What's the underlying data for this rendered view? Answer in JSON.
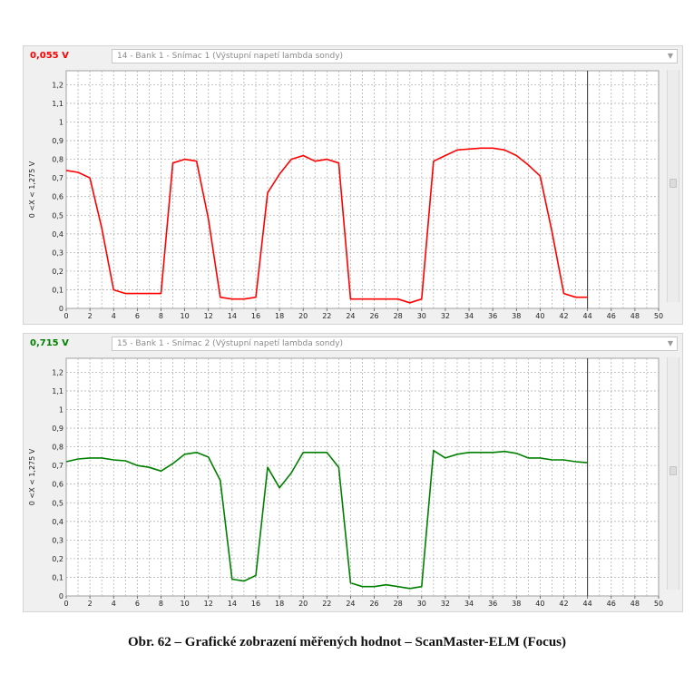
{
  "panels": [
    {
      "value_label": "0,055 V",
      "value_color": "#ff0000",
      "selector": "14 - Bank 1 - Snímac 1 (Výstupní napetí lambda sondy)",
      "ylabel": "0  <X <  1,275 V"
    },
    {
      "value_label": "0,715 V",
      "value_color": "#008000",
      "selector": "15 - Bank 1 - Snímac 2 (Výstupní napetí lambda sondy)",
      "ylabel": "0  <X <  1,275 V"
    }
  ],
  "caption": "Obr. 62 – Grafické zobrazení měřených hodnot – ScanMaster-ELM (Focus)",
  "chart_data": [
    {
      "type": "line",
      "title": "",
      "xlabel": "",
      "ylabel": "0  <X <  1,275 V",
      "xlim": [
        0,
        50
      ],
      "ylim": [
        0,
        1.275
      ],
      "grid": true,
      "cursor_x": 44,
      "x_ticks": [
        "0",
        "2",
        "4",
        "6",
        "8",
        "10",
        "12",
        "14",
        "16",
        "18",
        "20",
        "22",
        "24",
        "26",
        "28",
        "30",
        "32",
        "34",
        "36",
        "38",
        "40",
        "42",
        "44",
        "46",
        "48",
        "50"
      ],
      "y_ticks": [
        "0",
        "0,1",
        "0,2",
        "0,3",
        "0,4",
        "0,5",
        "0,6",
        "0,7",
        "0,8",
        "0,9",
        "1",
        "1,1",
        "1,2"
      ],
      "color": "#ff0000",
      "x": [
        0,
        1,
        2,
        3,
        4,
        5,
        6,
        7,
        8,
        9,
        10,
        11,
        12,
        13,
        14,
        15,
        16,
        17,
        18,
        19,
        20,
        21,
        22,
        23,
        24,
        25,
        26,
        27,
        28,
        29,
        30,
        31,
        32,
        33,
        34,
        35,
        36,
        37,
        38,
        39,
        40,
        41,
        42,
        43,
        44
      ],
      "values": [
        0.74,
        0.73,
        0.7,
        0.43,
        0.1,
        0.08,
        0.08,
        0.08,
        0.08,
        0.78,
        0.8,
        0.79,
        0.48,
        0.06,
        0.05,
        0.05,
        0.06,
        0.62,
        0.72,
        0.8,
        0.82,
        0.79,
        0.8,
        0.78,
        0.05,
        0.05,
        0.05,
        0.05,
        0.05,
        0.03,
        0.05,
        0.79,
        0.82,
        0.85,
        0.855,
        0.86,
        0.86,
        0.85,
        0.82,
        0.77,
        0.71,
        0.41,
        0.08,
        0.06,
        0.06
      ]
    },
    {
      "type": "line",
      "title": "",
      "xlabel": "",
      "ylabel": "0  <X <  1,275 V",
      "xlim": [
        0,
        50
      ],
      "ylim": [
        0,
        1.275
      ],
      "grid": true,
      "cursor_x": 44,
      "x_ticks": [
        "0",
        "2",
        "4",
        "6",
        "8",
        "10",
        "12",
        "14",
        "16",
        "18",
        "20",
        "22",
        "24",
        "26",
        "28",
        "30",
        "32",
        "34",
        "36",
        "38",
        "40",
        "42",
        "44",
        "46",
        "48",
        "50"
      ],
      "y_ticks": [
        "0",
        "0,1",
        "0,2",
        "0,3",
        "0,4",
        "0,5",
        "0,6",
        "0,7",
        "0,8",
        "0,9",
        "1",
        "1,1",
        "1,2"
      ],
      "color": "#008000",
      "x": [
        0,
        1,
        2,
        3,
        4,
        5,
        6,
        7,
        8,
        9,
        10,
        11,
        12,
        13,
        14,
        15,
        16,
        17,
        18,
        19,
        20,
        21,
        22,
        23,
        24,
        25,
        26,
        27,
        28,
        29,
        30,
        31,
        32,
        33,
        34,
        35,
        36,
        37,
        38,
        39,
        40,
        41,
        42,
        43,
        44
      ],
      "values": [
        0.72,
        0.735,
        0.74,
        0.74,
        0.73,
        0.725,
        0.7,
        0.69,
        0.67,
        0.71,
        0.76,
        0.77,
        0.745,
        0.62,
        0.09,
        0.08,
        0.11,
        0.69,
        0.58,
        0.66,
        0.77,
        0.77,
        0.77,
        0.69,
        0.07,
        0.05,
        0.05,
        0.06,
        0.05,
        0.04,
        0.05,
        0.78,
        0.74,
        0.76,
        0.77,
        0.77,
        0.77,
        0.775,
        0.765,
        0.74,
        0.74,
        0.73,
        0.73,
        0.72,
        0.715
      ]
    }
  ]
}
